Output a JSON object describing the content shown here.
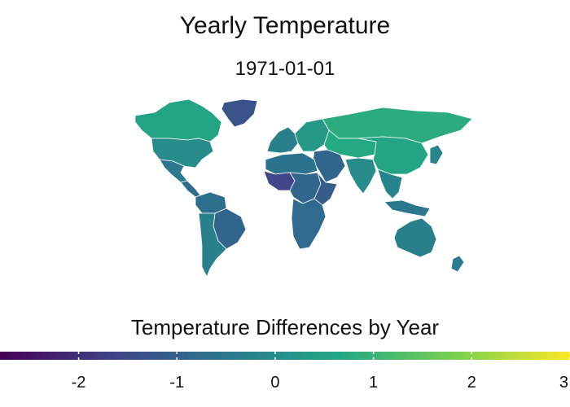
{
  "title": "Yearly Temperature",
  "subtitle": "1971-01-01",
  "legend": {
    "title": "Temperature Differences by Year",
    "min": -2.8,
    "max": 3.0,
    "ticks": [
      "-2",
      "-1",
      "0",
      "1",
      "2",
      "3"
    ],
    "palette": "viridis",
    "colors": [
      "#440154",
      "#414487",
      "#2a788e",
      "#22a884",
      "#7ad151",
      "#fde725"
    ]
  },
  "map": {
    "projection": "world choropleth",
    "border_color": "#ffffff",
    "region_values": [
      {
        "region": "Greenland",
        "value": -1.3
      },
      {
        "region": "Canada",
        "value": 0.6
      },
      {
        "region": "United States",
        "value": 0.0
      },
      {
        "region": "Mexico",
        "value": -0.5
      },
      {
        "region": "Central America",
        "value": -0.7
      },
      {
        "region": "South America North",
        "value": -0.7
      },
      {
        "region": "Brazil",
        "value": -0.9
      },
      {
        "region": "South America South",
        "value": -0.3
      },
      {
        "region": "Western Europe",
        "value": -0.3
      },
      {
        "region": "Eastern Europe",
        "value": 0.3
      },
      {
        "region": "Russia",
        "value": 0.8
      },
      {
        "region": "Central Asia",
        "value": 0.7
      },
      {
        "region": "Middle East",
        "value": -0.9
      },
      {
        "region": "North Africa",
        "value": -0.6
      },
      {
        "region": "West Africa",
        "value": -1.6
      },
      {
        "region": "Central Africa",
        "value": -0.9
      },
      {
        "region": "East Africa",
        "value": -1.1
      },
      {
        "region": "Southern Africa",
        "value": -0.8
      },
      {
        "region": "India",
        "value": 0.0
      },
      {
        "region": "China",
        "value": 0.6
      },
      {
        "region": "Southeast Asia",
        "value": -0.2
      },
      {
        "region": "Indonesia",
        "value": -0.5
      },
      {
        "region": "Japan",
        "value": -0.2
      },
      {
        "region": "Australia",
        "value": -0.3
      },
      {
        "region": "New Zealand",
        "value": -0.4
      }
    ]
  }
}
